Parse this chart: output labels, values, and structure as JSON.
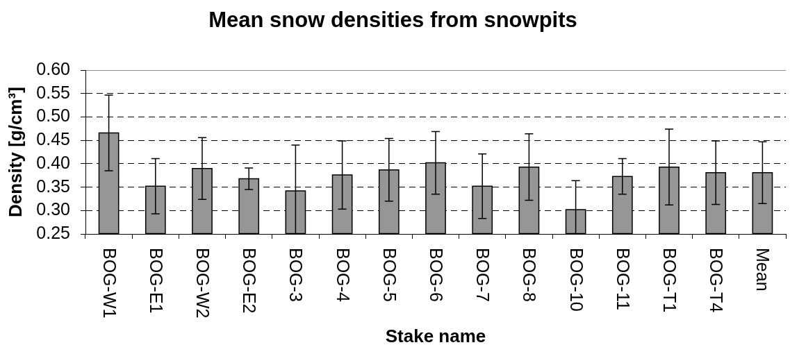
{
  "chart_data": {
    "type": "bar",
    "title": "Mean snow densities from snowpits",
    "xlabel": "Stake name",
    "ylabel": "Density [g/cm³]",
    "categories": [
      "BOG-W1",
      "BOG-E1",
      "BOG-W2",
      "BOG-E2",
      "BOG-3",
      "BOG-4",
      "BOG-5",
      "BOG-6",
      "BOG-7",
      "BOG-8",
      "BOG-10",
      "BOG-11",
      "BOG-T1",
      "BOG-T4",
      "Mean"
    ],
    "values": [
      0.466,
      0.352,
      0.39,
      0.368,
      0.342,
      0.376,
      0.387,
      0.402,
      0.352,
      0.393,
      0.302,
      0.373,
      0.393,
      0.381,
      0.381
    ],
    "errors": [
      0.081,
      0.059,
      0.066,
      0.023,
      0.098,
      0.073,
      0.067,
      0.067,
      0.069,
      0.071,
      0.062,
      0.038,
      0.081,
      0.068,
      0.066
    ],
    "color": "#969696",
    "ylim": [
      0.25,
      0.6
    ],
    "yticks": [
      {
        "value": 0.25,
        "label": "0.25"
      },
      {
        "value": 0.3,
        "label": "0.30"
      },
      {
        "value": 0.35,
        "label": "0.35"
      },
      {
        "value": 0.4,
        "label": "0.40"
      },
      {
        "value": 0.45,
        "label": "0.45"
      },
      {
        "value": 0.5,
        "label": "0.50"
      },
      {
        "value": 0.55,
        "label": "0.55"
      },
      {
        "value": 0.6,
        "label": "0.60"
      }
    ],
    "grid": "y"
  }
}
